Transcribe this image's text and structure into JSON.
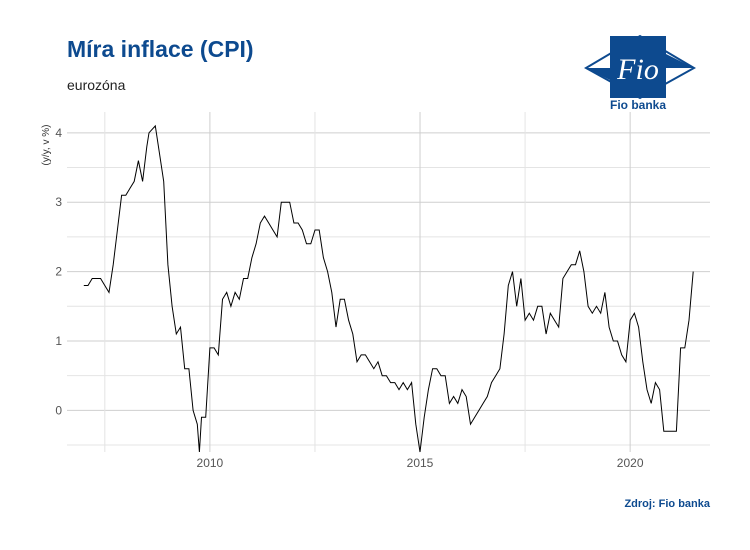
{
  "header": {
    "title": "Míra inflace (CPI)",
    "subtitle": "eurozóna"
  },
  "logo": {
    "text": "Fio banka",
    "mark": "Fio"
  },
  "footer": {
    "source": "Zdroj: Fio banka"
  },
  "chart_data": {
    "type": "line",
    "ylabel": "(y/y, v %)",
    "xlim": [
      2006.6,
      2021.9
    ],
    "ylim": [
      -0.6,
      4.3
    ],
    "x_ticks": [
      2010,
      2015,
      2020
    ],
    "y_ticks": [
      0,
      1,
      2,
      3,
      4
    ],
    "grid": true,
    "series": [
      {
        "x": [
          2007.0,
          2007.1,
          2007.2,
          2007.3,
          2007.4,
          2007.5,
          2007.6,
          2007.7,
          2007.8,
          2007.9,
          2008.0,
          2008.1,
          2008.2,
          2008.3,
          2008.4,
          2008.5,
          2008.55,
          2008.7,
          2008.8,
          2008.9,
          2009.0,
          2009.1,
          2009.2,
          2009.3,
          2009.4,
          2009.5,
          2009.6,
          2009.65,
          2009.7,
          2009.75,
          2009.8,
          2009.9,
          2010.0,
          2010.1,
          2010.2,
          2010.3,
          2010.4,
          2010.5,
          2010.6,
          2010.7,
          2010.8,
          2010.9,
          2011.0,
          2011.1,
          2011.2,
          2011.3,
          2011.4,
          2011.5,
          2011.6,
          2011.7,
          2011.8,
          2011.9,
          2012.0,
          2012.1,
          2012.2,
          2012.3,
          2012.4,
          2012.5,
          2012.6,
          2012.7,
          2012.8,
          2012.9,
          2013.0,
          2013.1,
          2013.2,
          2013.3,
          2013.4,
          2013.5,
          2013.6,
          2013.7,
          2013.8,
          2013.9,
          2014.0,
          2014.1,
          2014.2,
          2014.3,
          2014.4,
          2014.5,
          2014.6,
          2014.7,
          2014.8,
          2014.9,
          2015.0,
          2015.1,
          2015.2,
          2015.3,
          2015.4,
          2015.5,
          2015.6,
          2015.7,
          2015.8,
          2015.9,
          2016.0,
          2016.1,
          2016.2,
          2016.3,
          2016.4,
          2016.5,
          2016.6,
          2016.7,
          2016.8,
          2016.9,
          2017.0,
          2017.1,
          2017.2,
          2017.3,
          2017.4,
          2017.5,
          2017.6,
          2017.7,
          2017.8,
          2017.9,
          2018.0,
          2018.1,
          2018.2,
          2018.3,
          2018.4,
          2018.5,
          2018.6,
          2018.7,
          2018.8,
          2018.9,
          2019.0,
          2019.1,
          2019.2,
          2019.3,
          2019.4,
          2019.5,
          2019.6,
          2019.7,
          2019.8,
          2019.9,
          2020.0,
          2020.1,
          2020.2,
          2020.3,
          2020.4,
          2020.5,
          2020.6,
          2020.7,
          2020.8,
          2020.9,
          2021.0,
          2021.1,
          2021.2,
          2021.3,
          2021.4,
          2021.5
        ],
        "values": [
          1.8,
          1.8,
          1.9,
          1.9,
          1.9,
          1.8,
          1.7,
          2.1,
          2.6,
          3.1,
          3.1,
          3.2,
          3.3,
          3.6,
          3.3,
          3.8,
          4.0,
          4.1,
          3.7,
          3.3,
          2.1,
          1.5,
          1.1,
          1.2,
          0.6,
          0.6,
          0.0,
          -0.1,
          -0.2,
          -0.6,
          -0.1,
          -0.1,
          0.9,
          0.9,
          0.8,
          1.6,
          1.7,
          1.5,
          1.7,
          1.6,
          1.9,
          1.9,
          2.2,
          2.4,
          2.7,
          2.8,
          2.7,
          2.6,
          2.5,
          3.0,
          3.0,
          3.0,
          2.7,
          2.7,
          2.6,
          2.4,
          2.4,
          2.6,
          2.6,
          2.2,
          2.0,
          1.7,
          1.2,
          1.6,
          1.6,
          1.3,
          1.1,
          0.7,
          0.8,
          0.8,
          0.7,
          0.6,
          0.7,
          0.5,
          0.5,
          0.4,
          0.4,
          0.3,
          0.4,
          0.3,
          0.4,
          -0.2,
          -0.6,
          -0.1,
          0.3,
          0.6,
          0.6,
          0.5,
          0.5,
          0.1,
          0.2,
          0.1,
          0.3,
          0.2,
          -0.2,
          -0.1,
          0.0,
          0.1,
          0.2,
          0.4,
          0.5,
          0.6,
          1.1,
          1.8,
          2.0,
          1.5,
          1.9,
          1.3,
          1.4,
          1.3,
          1.5,
          1.5,
          1.1,
          1.4,
          1.3,
          1.2,
          1.9,
          2.0,
          2.1,
          2.1,
          2.3,
          2.0,
          1.5,
          1.4,
          1.5,
          1.4,
          1.7,
          1.2,
          1.0,
          1.0,
          0.8,
          0.7,
          1.3,
          1.4,
          1.2,
          0.7,
          0.3,
          0.1,
          0.4,
          0.3,
          -0.3,
          -0.3,
          -0.3,
          -0.3,
          0.9,
          0.9,
          1.3,
          2.0
        ]
      }
    ]
  }
}
